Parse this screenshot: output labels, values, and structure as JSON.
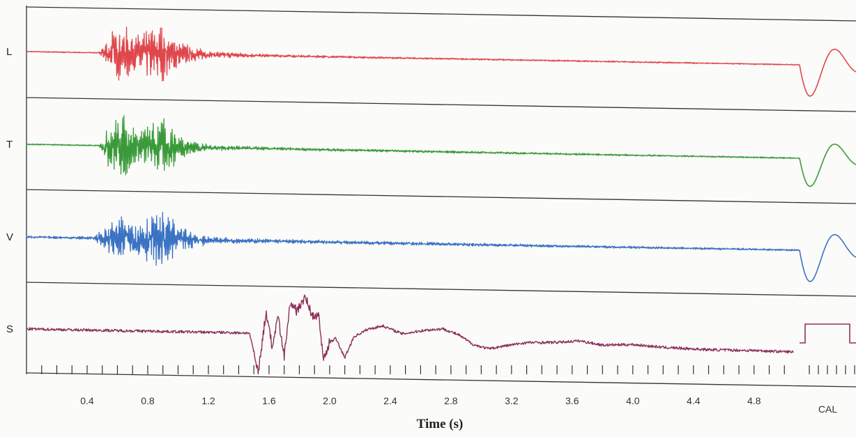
{
  "chart_data": {
    "type": "line",
    "title": "",
    "xlabel": "Time (s)",
    "ylabel": "",
    "xlim": [
      0.0,
      5.1
    ],
    "grid": false,
    "legend": "none",
    "x_tick_labels": [
      "0.4",
      "0.8",
      "1.2",
      "1.6",
      "2.0",
      "2.4",
      "2.8",
      "3.2",
      "3.6",
      "4.0",
      "4.4",
      "4.8"
    ],
    "x_ticks": [
      0.4,
      0.8,
      1.2,
      1.6,
      2.0,
      2.4,
      2.8,
      3.2,
      3.6,
      4.0,
      4.4,
      4.8
    ],
    "cal_label": "CAL",
    "series": [
      {
        "name": "L",
        "color": "#e0474c",
        "calibration": "pulse-response",
        "envelope_points": [
          [
            0.0,
            0.02
          ],
          [
            0.48,
            0.02
          ],
          [
            0.55,
            0.85
          ],
          [
            0.65,
            0.95
          ],
          [
            0.72,
            0.6
          ],
          [
            0.8,
            0.9
          ],
          [
            0.88,
            1.0
          ],
          [
            0.95,
            0.7
          ],
          [
            1.05,
            0.35
          ],
          [
            1.2,
            0.12
          ],
          [
            1.6,
            0.05
          ],
          [
            2.5,
            0.03
          ],
          [
            5.1,
            0.02
          ]
        ]
      },
      {
        "name": "T",
        "color": "#3a9a3a",
        "calibration": "pulse-response",
        "envelope_points": [
          [
            0.0,
            0.02
          ],
          [
            0.48,
            0.02
          ],
          [
            0.55,
            0.8
          ],
          [
            0.65,
            1.0
          ],
          [
            0.74,
            0.45
          ],
          [
            0.8,
            0.75
          ],
          [
            0.9,
            0.95
          ],
          [
            0.97,
            0.6
          ],
          [
            1.05,
            0.3
          ],
          [
            1.2,
            0.1
          ],
          [
            1.6,
            0.05
          ],
          [
            2.5,
            0.04
          ],
          [
            5.1,
            0.02
          ]
        ]
      },
      {
        "name": "V",
        "color": "#3a72c4",
        "calibration": "pulse-response",
        "envelope_points": [
          [
            0.0,
            0.04
          ],
          [
            0.45,
            0.05
          ],
          [
            0.55,
            0.6
          ],
          [
            0.65,
            0.75
          ],
          [
            0.75,
            0.6
          ],
          [
            0.82,
            0.85
          ],
          [
            0.88,
            1.0
          ],
          [
            0.97,
            0.7
          ],
          [
            1.05,
            0.4
          ],
          [
            1.2,
            0.12
          ],
          [
            1.6,
            0.07
          ],
          [
            3.0,
            0.05
          ],
          [
            5.1,
            0.03
          ]
        ]
      },
      {
        "name": "S",
        "color": "#8c2f5a",
        "calibration": "step",
        "points": [
          [
            0.0,
            0.0
          ],
          [
            1.47,
            0.0
          ],
          [
            1.53,
            -1.0
          ],
          [
            1.58,
            0.55
          ],
          [
            1.62,
            -0.35
          ],
          [
            1.66,
            0.4
          ],
          [
            1.7,
            -0.6
          ],
          [
            1.74,
            0.8
          ],
          [
            1.78,
            0.6
          ],
          [
            1.84,
            1.0
          ],
          [
            1.88,
            0.5
          ],
          [
            1.93,
            0.45
          ],
          [
            1.96,
            -0.7
          ],
          [
            2.0,
            -0.2
          ],
          [
            2.04,
            -0.1
          ],
          [
            2.1,
            -0.6
          ],
          [
            2.16,
            -0.05
          ],
          [
            2.25,
            0.15
          ],
          [
            2.35,
            0.25
          ],
          [
            2.48,
            0.05
          ],
          [
            2.62,
            0.15
          ],
          [
            2.75,
            0.2
          ],
          [
            2.85,
            0.05
          ],
          [
            2.95,
            -0.2
          ],
          [
            3.05,
            -0.3
          ],
          [
            3.15,
            -0.22
          ],
          [
            3.3,
            -0.12
          ],
          [
            3.5,
            -0.1
          ],
          [
            3.65,
            -0.05
          ],
          [
            3.8,
            -0.15
          ],
          [
            4.0,
            -0.12
          ],
          [
            4.2,
            -0.18
          ],
          [
            4.5,
            -0.22
          ],
          [
            4.8,
            -0.22
          ],
          [
            5.06,
            -0.24
          ]
        ]
      }
    ]
  }
}
